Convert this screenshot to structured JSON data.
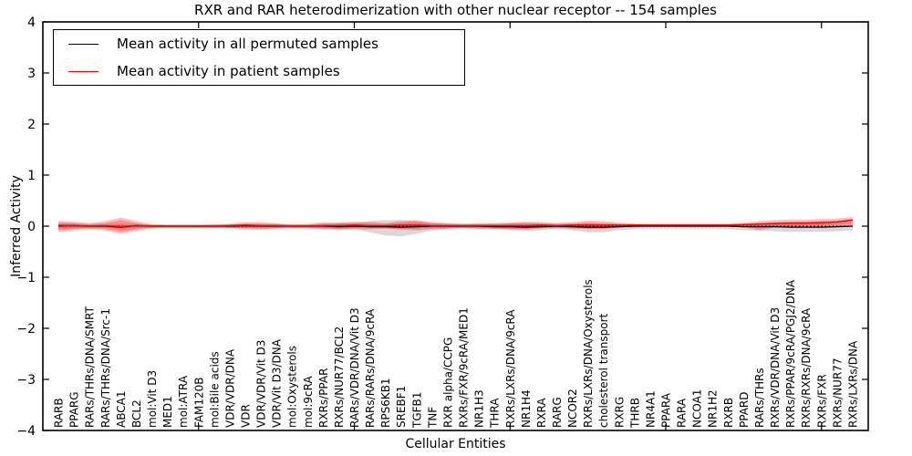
{
  "title": "RXR and RAR heterodimerization with other nuclear receptor -- 154 samples",
  "legend": [
    {
      "label": "Mean activity in all permuted samples",
      "color": "#000000"
    },
    {
      "label": "Mean activity in patient samples",
      "color": "#ff0000"
    }
  ],
  "chart_data": {
    "type": "line",
    "title": "RXR and RAR heterodimerization with other nuclear receptor -- 154 samples",
    "xlabel": "Cellular Entities",
    "ylabel": "Inferred Activity",
    "ylim": [
      -4,
      4
    ],
    "ytick_labels": [
      "4",
      "3",
      "2",
      "1",
      "0",
      "−1",
      "−2",
      "−3",
      "−4"
    ],
    "ytick_values": [
      4,
      3,
      2,
      1,
      0,
      -1,
      -2,
      -3,
      -4
    ],
    "grid": false,
    "legend_position": "upper left",
    "zero_line": {
      "style": "dotted",
      "color": "#000000",
      "y": 0
    },
    "categories": [
      "RARB",
      "PPARG",
      "RARs/THRs/DNA/SMRT",
      "RARs/THRs/DNA/Src-1",
      "ABCA1",
      "BCL2",
      "mol:Vit D3",
      "MED1",
      "mol:ATRA",
      "FAM120B",
      "mol:Bile acids",
      "VDR/VDR/DNA",
      "VDR",
      "VDR/VDR/Vit D3",
      "VDR/Vit D3/DNA",
      "mol:Oxysterols",
      "mol:9cRA",
      "RXRs/PPAR",
      "RXRs/NUR77/BCL2",
      "RARs/VDR/DNA/Vit D3",
      "RARs/RARs/DNA/9cRA",
      "RPS6KB1",
      "SREBF1",
      "TGFB1",
      "TNF",
      "RXR alpha/CCPG",
      "RXRs/FXR/9cRA/MED1",
      "NR1H3",
      "THRA",
      "RXRs/LXRs/DNA/9cRA",
      "NR1H4",
      "RXRA",
      "RARG",
      "NCOR2",
      "RXRs/LXRs/DNA/Oxysterols",
      "cholesterol transport",
      "RXRG",
      "THRB",
      "NR4A1",
      "PPARA",
      "RARA",
      "NCOA1",
      "NR1H2",
      "RXRB",
      "PPARD",
      "RARs/THRs",
      "RXRs/VDR/DNA/Vit D3",
      "RXRs/PPAR/9cRA/PGJ2/DNA",
      "RXRs/RXRs/DNA/9cRA",
      "RXRs/FXR",
      "RXRs/NUR77",
      "RXRs/LXRs/DNA"
    ],
    "series": [
      {
        "name": "Mean activity in all permuted samples",
        "color": "#000000",
        "values": [
          0.01,
          0.01,
          0,
          0,
          -0.02,
          0.01,
          0,
          0,
          0,
          0,
          0,
          0,
          0.01,
          0,
          0,
          0,
          0,
          0,
          -0.01,
          0,
          -0.01,
          -0.01,
          -0.02,
          -0.01,
          0,
          0,
          0,
          0,
          -0.01,
          -0.01,
          -0.02,
          -0.01,
          0,
          -0.01,
          -0.02,
          -0.02,
          -0.01,
          0,
          0,
          0,
          0,
          0,
          0,
          0,
          -0.01,
          -0.01,
          -0.01,
          -0.02,
          -0.02,
          -0.02,
          -0.01,
          0
        ]
      },
      {
        "name": "Mean activity in patient samples",
        "color": "#ff0000",
        "values": [
          0,
          0.01,
          0,
          0.01,
          -0.01,
          0.01,
          0,
          0,
          0,
          0,
          0,
          0.01,
          0.02,
          0.01,
          0.01,
          0,
          0,
          0.01,
          0.01,
          0.02,
          0.01,
          0.01,
          0.02,
          0.02,
          0.01,
          0.01,
          0.01,
          0.01,
          0.01,
          0.01,
          0.01,
          0.02,
          0.01,
          0.02,
          0.02,
          0.02,
          0.02,
          0.02,
          0.02,
          0.02,
          0.02,
          0.02,
          0.02,
          0.02,
          0.03,
          0.04,
          0.05,
          0.06,
          0.06,
          0.07,
          0.08,
          0.12
        ]
      }
    ],
    "bands": [
      {
        "name": "permuted-samples-std",
        "color": "rgba(120,120,120,0.28)",
        "upper": [
          0.05,
          0.05,
          0.04,
          0.04,
          0.05,
          0.04,
          0.03,
          0.03,
          0.03,
          0.03,
          0.03,
          0.035,
          0.04,
          0.04,
          0.04,
          0.03,
          0.03,
          0.05,
          0.06,
          0.06,
          0.1,
          0.12,
          0.12,
          0.1,
          0.06,
          0.05,
          0.04,
          0.04,
          0.05,
          0.06,
          0.06,
          0.06,
          0.05,
          0.05,
          0.06,
          0.05,
          0.04,
          0.04,
          0.03,
          0.03,
          0.03,
          0.03,
          0.03,
          0.03,
          0.04,
          0.04,
          0.04,
          0.04,
          0.04,
          0.04,
          0.05,
          0.06
        ],
        "lower": [
          -0.05,
          -0.05,
          -0.04,
          -0.04,
          -0.05,
          -0.04,
          -0.03,
          -0.03,
          -0.03,
          -0.03,
          -0.03,
          -0.035,
          -0.04,
          -0.04,
          -0.04,
          -0.03,
          -0.03,
          -0.05,
          -0.06,
          -0.06,
          -0.12,
          -0.18,
          -0.2,
          -0.15,
          -0.08,
          -0.05,
          -0.04,
          -0.05,
          -0.05,
          -0.08,
          -0.09,
          -0.08,
          -0.05,
          -0.08,
          -0.12,
          -0.12,
          -0.08,
          -0.06,
          -0.05,
          -0.05,
          -0.05,
          -0.05,
          -0.05,
          -0.06,
          -0.08,
          -0.09,
          -0.1,
          -0.11,
          -0.11,
          -0.11,
          -0.1,
          -0.08
        ]
      },
      {
        "name": "patient-samples-std-outer",
        "color": "rgba(255,0,0,0.25)",
        "upper": [
          0.1,
          0.09,
          0.06,
          0.1,
          0.17,
          0.1,
          0.04,
          0.03,
          0.03,
          0.03,
          0.035,
          0.05,
          0.08,
          0.08,
          0.06,
          0.04,
          0.04,
          0.08,
          0.07,
          0.09,
          0.08,
          0.06,
          0.1,
          0.12,
          0.08,
          0.06,
          0.05,
          0.06,
          0.06,
          0.07,
          0.09,
          0.08,
          0.06,
          0.08,
          0.11,
          0.1,
          0.07,
          0.05,
          0.05,
          0.05,
          0.05,
          0.05,
          0.05,
          0.05,
          0.07,
          0.1,
          0.12,
          0.13,
          0.13,
          0.14,
          0.15,
          0.18
        ],
        "lower": [
          -0.12,
          -0.08,
          -0.05,
          -0.08,
          -0.15,
          -0.09,
          -0.04,
          -0.03,
          -0.03,
          -0.03,
          -0.035,
          -0.04,
          -0.06,
          -0.07,
          -0.05,
          -0.04,
          -0.04,
          -0.06,
          -0.07,
          -0.06,
          -0.06,
          -0.05,
          -0.07,
          -0.08,
          -0.06,
          -0.05,
          -0.04,
          -0.05,
          -0.06,
          -0.06,
          -0.07,
          -0.05,
          -0.04,
          -0.05,
          -0.06,
          -0.06,
          -0.03,
          -0.02,
          -0.01,
          -0.01,
          -0.01,
          -0.01,
          -0.01,
          -0.01,
          -0.02,
          -0.08,
          -0.03,
          -0.02,
          -0.02,
          -0.01,
          0.0,
          0.02
        ]
      },
      {
        "name": "patient-samples-std-inner",
        "color": "rgba(255,0,0,0.25)",
        "upper": [
          0.07,
          0.06,
          0.04,
          0.06,
          0.12,
          0.06,
          0.025,
          0.02,
          0.02,
          0.02,
          0.025,
          0.03,
          0.05,
          0.05,
          0.04,
          0.03,
          0.03,
          0.05,
          0.05,
          0.06,
          0.05,
          0.04,
          0.07,
          0.08,
          0.05,
          0.04,
          0.03,
          0.04,
          0.04,
          0.05,
          0.06,
          0.05,
          0.04,
          0.05,
          0.07,
          0.06,
          0.05,
          0.04,
          0.04,
          0.04,
          0.04,
          0.04,
          0.04,
          0.04,
          0.05,
          0.07,
          0.08,
          0.09,
          0.09,
          0.1,
          0.11,
          0.14
        ],
        "lower": [
          -0.08,
          -0.05,
          -0.04,
          -0.05,
          -0.11,
          -0.06,
          -0.025,
          -0.02,
          -0.02,
          -0.02,
          -0.025,
          -0.03,
          -0.04,
          -0.05,
          -0.04,
          -0.03,
          -0.03,
          -0.04,
          -0.05,
          -0.04,
          -0.04,
          -0.04,
          -0.05,
          -0.05,
          -0.04,
          -0.04,
          -0.03,
          -0.04,
          -0.04,
          -0.05,
          -0.05,
          -0.03,
          -0.03,
          -0.03,
          -0.04,
          -0.04,
          -0.02,
          -0.01,
          0.0,
          0.0,
          0.0,
          0.0,
          0.0,
          0.0,
          -0.01,
          -0.04,
          -0.01,
          0.0,
          0.01,
          0.02,
          0.03,
          0.06
        ]
      }
    ]
  }
}
